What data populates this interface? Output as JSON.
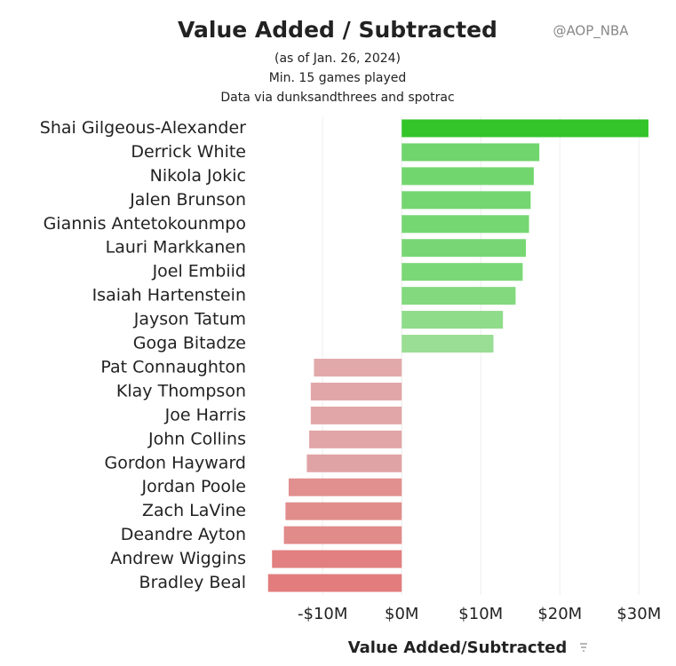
{
  "chart_data": {
    "type": "hbar",
    "title": "Value Added / Subtracted",
    "subtitle": [
      "(as of Jan. 26, 2024)",
      "Min. 15 games played",
      "Data via dunksandthrees and spotrac"
    ],
    "watermark": "@AOP_NBA",
    "x_label": "Value Added/Subtracted",
    "categories": [
      "Shai Gilgeous-Alexander",
      "Derrick White",
      "Nikola Jokic",
      "Jalen Brunson",
      "Giannis Antetokounmpo",
      "Lauri Markkanen",
      "Joel Embiid",
      "Isaiah Hartenstein",
      "Jayson Tatum",
      "Goga Bitadze",
      "Pat Connaughton",
      "Klay Thompson",
      "Joe Harris",
      "John Collins",
      "Gordon Hayward",
      "Jordan Poole",
      "Zach LaVine",
      "Deandre Ayton",
      "Andrew Wiggins",
      "Bradley Beal"
    ],
    "values": [
      31.2,
      17.4,
      16.7,
      16.3,
      16.1,
      15.7,
      15.3,
      14.4,
      12.8,
      11.6,
      -11.1,
      -11.5,
      -11.5,
      -11.7,
      -12.0,
      -14.3,
      -14.7,
      -14.9,
      -16.4,
      -16.9
    ],
    "colors": [
      "#33c52a",
      "#6fd56c",
      "#72d66f",
      "#74d671",
      "#75d772",
      "#78d774",
      "#7bd877",
      "#82d97e",
      "#8fdc8a",
      "#99de94",
      "#e2a9ab",
      "#e1a6a8",
      "#e1a6a8",
      "#e1a5a7",
      "#e0a3a5",
      "#e1908f",
      "#e18d8c",
      "#e18b8b",
      "#e27f80",
      "#e27c7d"
    ],
    "xlim": [
      -18,
      33
    ],
    "xticks": [
      {
        "value": -10,
        "label": "-$10M"
      },
      {
        "value": 0,
        "label": "$0M"
      },
      {
        "value": 10,
        "label": "$10M"
      },
      {
        "value": 20,
        "label": "$20M"
      },
      {
        "value": 30,
        "label": "$30M"
      }
    ],
    "grid": true
  }
}
